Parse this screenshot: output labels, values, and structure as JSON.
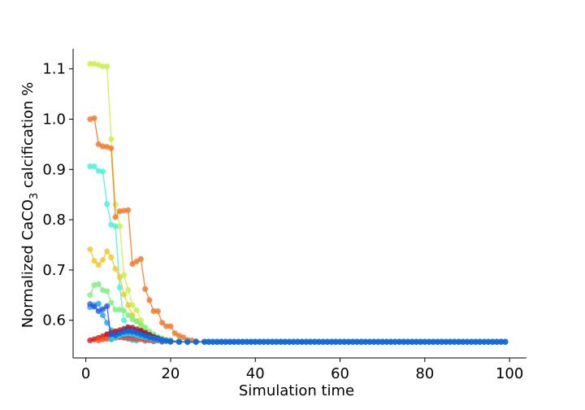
{
  "chart_data": {
    "type": "line",
    "title": "",
    "xlabel": "Simulation time",
    "ylabel_main": "Normalized CaCO",
    "ylabel_sub": "3",
    "ylabel_tail": " calcification %",
    "xlim": [
      -3,
      104
    ],
    "ylim": [
      0.525,
      1.14
    ],
    "xticks": [
      0,
      20,
      40,
      60,
      80,
      100
    ],
    "yticks": [
      0.6,
      0.7,
      0.8,
      0.9,
      1.0,
      1.1
    ],
    "ytick_labels": [
      "0.6",
      "0.7",
      "0.8",
      "0.9",
      "1.0",
      "1.1"
    ],
    "marker": "circle",
    "grid": false,
    "legend": false,
    "tail": {
      "from_x": 28,
      "to_x": 99,
      "value": 0.557
    },
    "series": [
      {
        "color": "#c8f048",
        "points": [
          [
            1,
            1.11
          ],
          [
            2,
            1.11
          ],
          [
            3,
            1.108
          ],
          [
            4,
            1.105
          ],
          [
            5,
            1.105
          ],
          [
            6,
            0.96
          ],
          [
            7,
            0.83
          ],
          [
            8,
            0.787
          ],
          [
            9,
            0.69
          ],
          [
            10,
            0.66
          ],
          [
            11,
            0.63
          ],
          [
            12,
            0.62
          ],
          [
            13,
            0.6
          ],
          [
            14,
            0.585
          ],
          [
            15,
            0.575
          ],
          [
            16,
            0.568
          ],
          [
            17,
            0.564
          ],
          [
            18,
            0.561
          ],
          [
            19,
            0.559
          ],
          [
            20,
            0.558
          ],
          [
            22,
            0.557
          ],
          [
            24,
            0.557
          ],
          [
            26,
            0.557
          ],
          [
            28,
            0.557
          ]
        ]
      },
      {
        "color": "#f07a28",
        "points": [
          [
            1,
            1.0
          ],
          [
            2,
            1.002
          ],
          [
            3,
            0.95
          ],
          [
            4,
            0.946
          ],
          [
            5,
            0.945
          ],
          [
            6,
            0.942
          ],
          [
            7,
            0.805
          ],
          [
            8,
            0.817
          ],
          [
            9,
            0.818
          ],
          [
            10,
            0.819
          ],
          [
            11,
            0.712
          ],
          [
            12,
            0.717
          ],
          [
            13,
            0.722
          ],
          [
            14,
            0.662
          ],
          [
            15,
            0.64
          ],
          [
            16,
            0.618
          ],
          [
            17,
            0.618
          ],
          [
            18,
            0.595
          ],
          [
            19,
            0.588
          ],
          [
            20,
            0.588
          ],
          [
            21,
            0.574
          ],
          [
            22,
            0.569
          ],
          [
            23,
            0.566
          ],
          [
            24,
            0.561
          ],
          [
            25,
            0.56
          ],
          [
            26,
            0.558
          ],
          [
            28,
            0.557
          ]
        ]
      },
      {
        "color": "#48f0d8",
        "points": [
          [
            1,
            0.906
          ],
          [
            2,
            0.906
          ],
          [
            3,
            0.897
          ],
          [
            4,
            0.896
          ],
          [
            5,
            0.831
          ],
          [
            6,
            0.79
          ],
          [
            7,
            0.787
          ],
          [
            8,
            0.665
          ],
          [
            9,
            0.6
          ],
          [
            10,
            0.585
          ],
          [
            11,
            0.575
          ],
          [
            12,
            0.57
          ],
          [
            13,
            0.566
          ],
          [
            14,
            0.563
          ],
          [
            15,
            0.561
          ],
          [
            16,
            0.56
          ],
          [
            18,
            0.559
          ],
          [
            20,
            0.558
          ],
          [
            22,
            0.557
          ],
          [
            24,
            0.557
          ],
          [
            26,
            0.557
          ],
          [
            28,
            0.557
          ]
        ]
      },
      {
        "color": "#f0c828",
        "points": [
          [
            1,
            0.741
          ],
          [
            2,
            0.718
          ],
          [
            3,
            0.71
          ],
          [
            4,
            0.72
          ],
          [
            5,
            0.737
          ],
          [
            6,
            0.725
          ],
          [
            7,
            0.702
          ],
          [
            8,
            0.686
          ],
          [
            9,
            0.651
          ],
          [
            10,
            0.63
          ],
          [
            11,
            0.61
          ],
          [
            12,
            0.598
          ],
          [
            13,
            0.588
          ],
          [
            14,
            0.58
          ],
          [
            15,
            0.574
          ],
          [
            16,
            0.57
          ],
          [
            17,
            0.566
          ],
          [
            18,
            0.563
          ],
          [
            19,
            0.561
          ],
          [
            20,
            0.56
          ],
          [
            22,
            0.558
          ],
          [
            24,
            0.557
          ],
          [
            26,
            0.557
          ],
          [
            28,
            0.557
          ]
        ]
      },
      {
        "color": "#80f080",
        "points": [
          [
            1,
            0.65
          ],
          [
            2,
            0.67
          ],
          [
            3,
            0.672
          ],
          [
            4,
            0.66
          ],
          [
            5,
            0.658
          ],
          [
            6,
            0.635
          ],
          [
            7,
            0.621
          ],
          [
            8,
            0.621
          ],
          [
            9,
            0.619
          ],
          [
            10,
            0.61
          ],
          [
            11,
            0.602
          ],
          [
            12,
            0.598
          ],
          [
            13,
            0.592
          ],
          [
            14,
            0.585
          ],
          [
            15,
            0.578
          ],
          [
            16,
            0.572
          ],
          [
            17,
            0.567
          ],
          [
            18,
            0.564
          ],
          [
            19,
            0.561
          ],
          [
            20,
            0.56
          ],
          [
            22,
            0.558
          ],
          [
            24,
            0.557
          ],
          [
            26,
            0.557
          ],
          [
            28,
            0.557
          ]
        ]
      },
      {
        "color": "#28a8f0",
        "points": [
          [
            1,
            0.626
          ],
          [
            2,
            0.63
          ],
          [
            3,
            0.633
          ],
          [
            4,
            0.61
          ],
          [
            5,
            0.595
          ],
          [
            6,
            0.58
          ],
          [
            7,
            0.572
          ],
          [
            8,
            0.568
          ],
          [
            9,
            0.565
          ],
          [
            10,
            0.563
          ],
          [
            11,
            0.561
          ],
          [
            12,
            0.56
          ],
          [
            14,
            0.559
          ],
          [
            16,
            0.558
          ],
          [
            18,
            0.557
          ],
          [
            20,
            0.557
          ],
          [
            22,
            0.557
          ],
          [
            24,
            0.557
          ],
          [
            26,
            0.557
          ],
          [
            28,
            0.557
          ]
        ]
      },
      {
        "color": "#2858e8",
        "points": [
          [
            1,
            0.632
          ],
          [
            2,
            0.627
          ],
          [
            3,
            0.618
          ],
          [
            4,
            0.622
          ],
          [
            5,
            0.628
          ],
          [
            6,
            0.562
          ],
          [
            7,
            0.572
          ],
          [
            8,
            0.575
          ],
          [
            9,
            0.576
          ],
          [
            10,
            0.575
          ],
          [
            11,
            0.574
          ],
          [
            12,
            0.576
          ],
          [
            13,
            0.578
          ],
          [
            14,
            0.574
          ],
          [
            15,
            0.57
          ],
          [
            16,
            0.566
          ],
          [
            17,
            0.563
          ],
          [
            18,
            0.561
          ],
          [
            19,
            0.559
          ],
          [
            20,
            0.558
          ],
          [
            22,
            0.557
          ],
          [
            24,
            0.557
          ],
          [
            26,
            0.557
          ],
          [
            28,
            0.557
          ]
        ]
      },
      {
        "color": "#a01830",
        "points": [
          [
            5,
            0.571
          ],
          [
            6,
            0.574
          ],
          [
            7,
            0.578
          ],
          [
            8,
            0.58
          ],
          [
            9,
            0.583
          ],
          [
            10,
            0.586
          ],
          [
            11,
            0.585
          ],
          [
            12,
            0.582
          ],
          [
            13,
            0.579
          ],
          [
            14,
            0.575
          ],
          [
            15,
            0.571
          ],
          [
            16,
            0.567
          ],
          [
            17,
            0.564
          ],
          [
            18,
            0.561
          ],
          [
            19,
            0.559
          ],
          [
            20,
            0.558
          ],
          [
            22,
            0.557
          ],
          [
            24,
            0.557
          ],
          [
            26,
            0.557
          ],
          [
            28,
            0.557
          ]
        ]
      },
      {
        "color": "#d81818",
        "points": [
          [
            1,
            0.56
          ],
          [
            2,
            0.562
          ],
          [
            3,
            0.565
          ],
          [
            4,
            0.568
          ],
          [
            5,
            0.572
          ],
          [
            6,
            0.575
          ],
          [
            7,
            0.576
          ],
          [
            8,
            0.576
          ],
          [
            9,
            0.575
          ],
          [
            10,
            0.573
          ],
          [
            11,
            0.571
          ],
          [
            12,
            0.569
          ],
          [
            13,
            0.566
          ],
          [
            14,
            0.564
          ],
          [
            15,
            0.562
          ],
          [
            16,
            0.561
          ],
          [
            17,
            0.56
          ],
          [
            18,
            0.559
          ],
          [
            20,
            0.558
          ],
          [
            22,
            0.557
          ],
          [
            24,
            0.557
          ],
          [
            26,
            0.557
          ],
          [
            28,
            0.557
          ]
        ]
      },
      {
        "color": "#f05020",
        "points": [
          [
            3,
            0.56
          ],
          [
            4,
            0.562
          ],
          [
            5,
            0.563
          ],
          [
            6,
            0.564
          ],
          [
            7,
            0.565
          ],
          [
            8,
            0.566
          ],
          [
            9,
            0.566
          ],
          [
            10,
            0.565
          ],
          [
            11,
            0.564
          ],
          [
            12,
            0.563
          ],
          [
            13,
            0.562
          ],
          [
            14,
            0.561
          ],
          [
            15,
            0.56
          ],
          [
            16,
            0.559
          ],
          [
            18,
            0.558
          ],
          [
            20,
            0.557
          ],
          [
            22,
            0.557
          ],
          [
            24,
            0.557
          ],
          [
            26,
            0.557
          ],
          [
            28,
            0.557
          ]
        ]
      },
      {
        "color": "#7030a0",
        "points": [
          [
            6,
            0.566
          ],
          [
            7,
            0.568
          ],
          [
            8,
            0.57
          ],
          [
            9,
            0.571
          ],
          [
            10,
            0.572
          ],
          [
            11,
            0.571
          ],
          [
            12,
            0.57
          ],
          [
            13,
            0.569
          ],
          [
            14,
            0.567
          ],
          [
            15,
            0.565
          ],
          [
            16,
            0.563
          ],
          [
            17,
            0.562
          ],
          [
            18,
            0.56
          ],
          [
            19,
            0.559
          ],
          [
            20,
            0.558
          ],
          [
            22,
            0.557
          ],
          [
            24,
            0.557
          ],
          [
            26,
            0.557
          ],
          [
            28,
            0.557
          ]
        ]
      },
      {
        "color": "#20d8f0",
        "points": [
          [
            6,
            0.562
          ],
          [
            7,
            0.566
          ],
          [
            8,
            0.57
          ],
          [
            9,
            0.572
          ],
          [
            10,
            0.573
          ],
          [
            11,
            0.572
          ],
          [
            12,
            0.57
          ],
          [
            13,
            0.568
          ],
          [
            14,
            0.566
          ],
          [
            15,
            0.564
          ],
          [
            16,
            0.562
          ],
          [
            17,
            0.561
          ],
          [
            18,
            0.56
          ],
          [
            19,
            0.559
          ],
          [
            20,
            0.558
          ],
          [
            22,
            0.557
          ],
          [
            24,
            0.557
          ],
          [
            26,
            0.557
          ],
          [
            28,
            0.557
          ]
        ]
      },
      {
        "color": "#1060e0",
        "points": [
          [
            6,
            0.572
          ],
          [
            7,
            0.57
          ],
          [
            8,
            0.574
          ],
          [
            9,
            0.577
          ],
          [
            10,
            0.578
          ],
          [
            11,
            0.577
          ],
          [
            12,
            0.575
          ],
          [
            13,
            0.572
          ],
          [
            14,
            0.569
          ],
          [
            15,
            0.566
          ],
          [
            16,
            0.564
          ],
          [
            17,
            0.562
          ],
          [
            18,
            0.56
          ],
          [
            19,
            0.559
          ],
          [
            20,
            0.558
          ],
          [
            22,
            0.557
          ],
          [
            24,
            0.557
          ],
          [
            26,
            0.557
          ],
          [
            28,
            0.557
          ]
        ]
      }
    ]
  }
}
